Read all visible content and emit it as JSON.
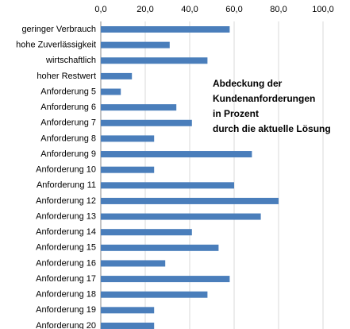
{
  "chart_data": {
    "type": "barh",
    "annotation": [
      "Abdeckung der",
      "Kundenanforderungen",
      "in Prozent",
      "durch die aktuelle Lösung"
    ],
    "categories": [
      "geringer Verbrauch",
      "hohe Zuverlässigkeit",
      "wirtschaftlich",
      "hoher Restwert",
      "Anforderung 5",
      "Anforderung 6",
      "Anforderung 7",
      "Anforderung 8",
      "Anforderung 9",
      "Anforderung 10",
      "Anforderung 11",
      "Anforderung 12",
      "Anforderung 13",
      "Anforderung 14",
      "Anforderung 15",
      "Anforderung 16",
      "Anforderung 17",
      "Anforderung 18",
      "Anforderung 19",
      "Anforderung 20"
    ],
    "values": [
      58,
      31,
      48,
      14,
      9,
      34,
      41,
      24,
      68,
      24,
      60,
      80,
      72,
      41,
      53,
      29,
      58,
      48,
      24,
      24
    ],
    "color": "#4a7ebb",
    "xlim": [
      0,
      100
    ],
    "xticks": [
      {
        "value": 0,
        "label": "0,0"
      },
      {
        "value": 20,
        "label": "20,0"
      },
      {
        "value": 40,
        "label": "40,0"
      },
      {
        "value": 60,
        "label": "60,0"
      },
      {
        "value": 80,
        "label": "80,0"
      },
      {
        "value": 100,
        "label": "100,0"
      }
    ],
    "grid": true
  }
}
